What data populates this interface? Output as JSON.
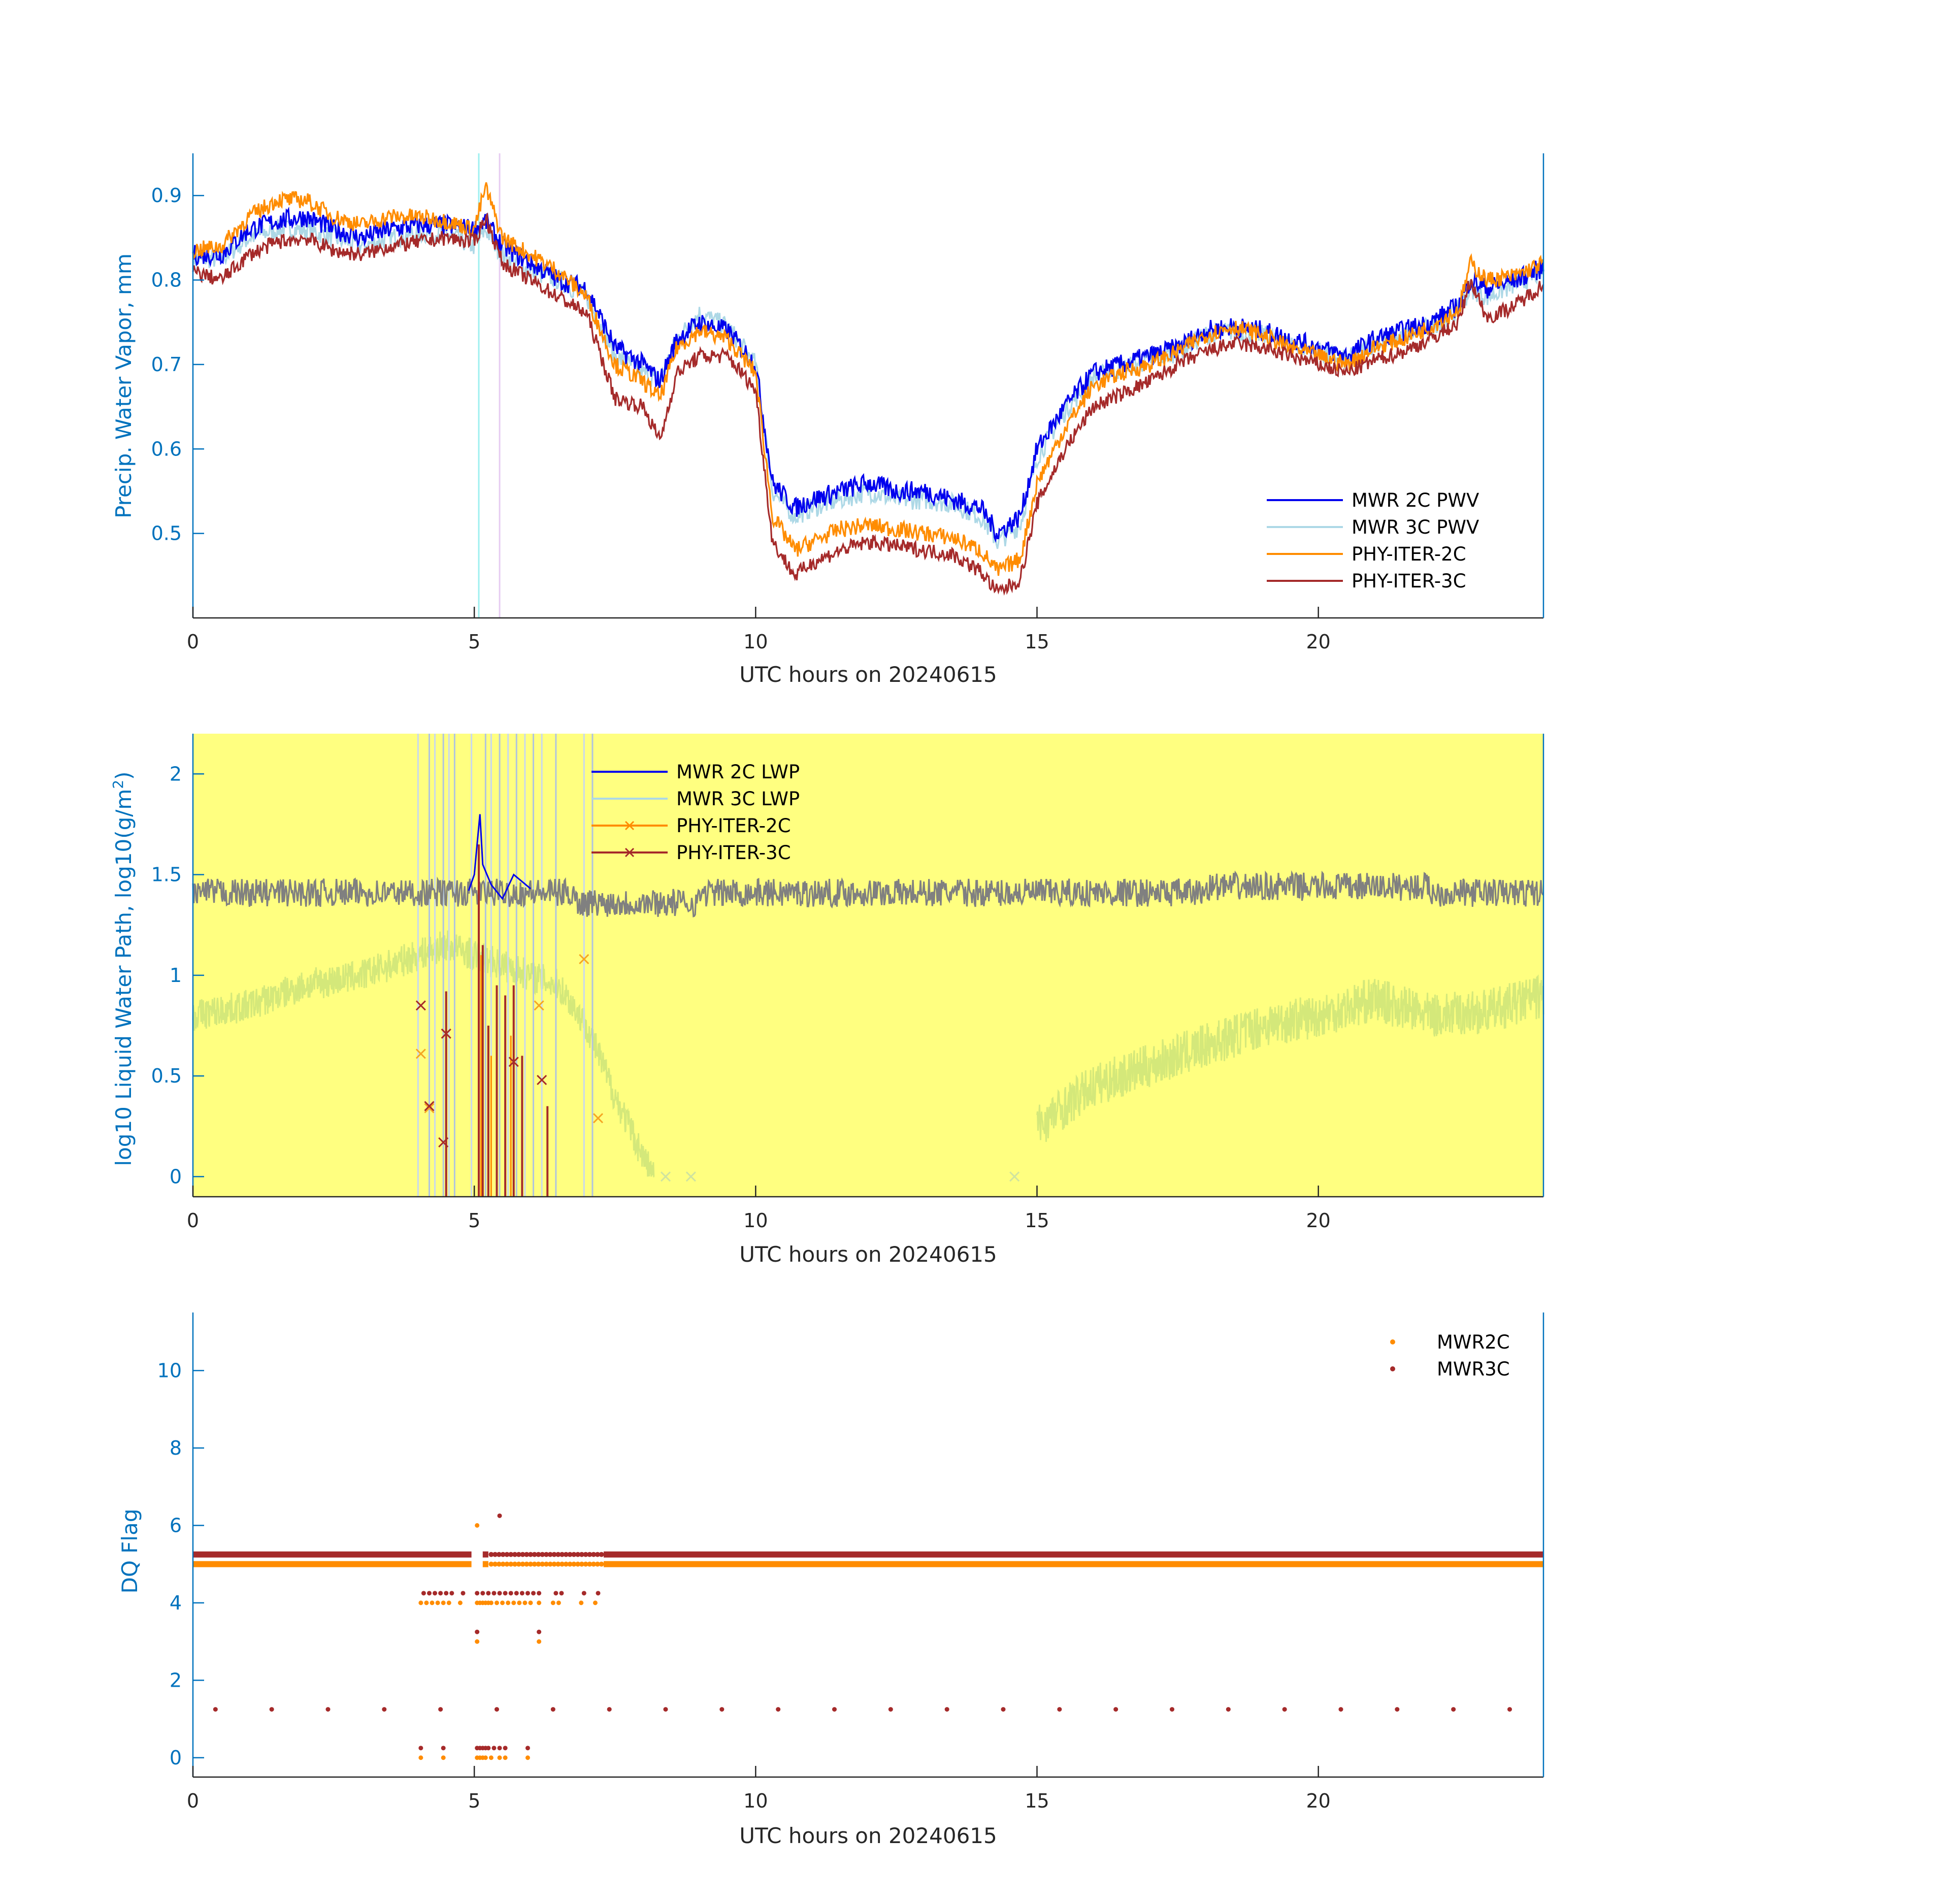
{
  "colors": {
    "mwr2c": "#0000EE",
    "mwr3c": "#ADD8E6",
    "phy2c": "#FF8C00",
    "phy3c": "#A52A2A",
    "axis_left": "#0072BD",
    "tick_text": "#262626",
    "lwp_background": "#FFFF80",
    "lwp_noise": "#808080",
    "lwp_green": "#D4E87A"
  },
  "chart_data": [
    {
      "type": "line",
      "xlabel": "UTC hours on 20240615",
      "ylabel": "Precip. Water Vapor, mm",
      "xlim": [
        0,
        24
      ],
      "ylim": [
        0.4,
        0.95
      ],
      "xticks": [
        0,
        5,
        10,
        15,
        20
      ],
      "xtick_labels": [
        "0",
        "5",
        "10",
        "15",
        "20"
      ],
      "yticks": [
        0.5,
        0.6,
        0.7,
        0.8,
        0.9
      ],
      "ytick_labels": [
        "0.5",
        "0.6",
        "0.7",
        "0.8",
        "0.9"
      ],
      "legend_position": "bottom-right",
      "x": [
        0,
        0.5,
        1,
        1.5,
        2,
        2.5,
        3,
        3.5,
        4,
        4.5,
        5,
        5.2,
        5.5,
        6,
        6.5,
        7,
        7.5,
        8,
        8.3,
        8.6,
        9,
        9.5,
        10,
        10.3,
        10.7,
        11,
        11.5,
        12,
        12.5,
        13,
        13.5,
        14,
        14.3,
        14.7,
        15,
        15.5,
        16,
        16.5,
        17,
        17.5,
        18,
        18.5,
        19,
        19.5,
        20,
        20.5,
        21,
        21.5,
        22,
        22.5,
        22.7,
        23,
        23.5,
        24
      ],
      "series": [
        {
          "name": "MWR 2C PWV",
          "values": [
            0.83,
            0.83,
            0.86,
            0.87,
            0.875,
            0.86,
            0.85,
            0.86,
            0.865,
            0.865,
            0.86,
            0.87,
            0.84,
            0.82,
            0.8,
            0.79,
            0.72,
            0.7,
            0.68,
            0.73,
            0.75,
            0.74,
            0.7,
            0.56,
            0.53,
            0.54,
            0.55,
            0.56,
            0.55,
            0.55,
            0.54,
            0.53,
            0.5,
            0.52,
            0.6,
            0.65,
            0.69,
            0.7,
            0.71,
            0.72,
            0.74,
            0.745,
            0.74,
            0.73,
            0.72,
            0.71,
            0.73,
            0.74,
            0.75,
            0.77,
            0.8,
            0.79,
            0.8,
            0.815
          ]
        },
        {
          "name": "MWR 3C PWV",
          "values": [
            0.825,
            0.825,
            0.85,
            0.86,
            0.86,
            0.85,
            0.84,
            0.85,
            0.855,
            0.855,
            0.84,
            0.86,
            0.83,
            0.81,
            0.8,
            0.78,
            0.71,
            0.69,
            0.68,
            0.73,
            0.76,
            0.745,
            0.7,
            0.55,
            0.52,
            0.53,
            0.54,
            0.55,
            0.54,
            0.54,
            0.535,
            0.52,
            0.49,
            0.51,
            0.59,
            0.645,
            0.685,
            0.695,
            0.705,
            0.715,
            0.735,
            0.74,
            0.735,
            0.725,
            0.715,
            0.705,
            0.725,
            0.735,
            0.745,
            0.765,
            0.79,
            0.78,
            0.795,
            0.81
          ]
        },
        {
          "name": "PHY-ITER-2C",
          "values": [
            0.835,
            0.84,
            0.875,
            0.895,
            0.895,
            0.875,
            0.865,
            0.875,
            0.875,
            0.87,
            0.86,
            0.91,
            0.85,
            0.83,
            0.81,
            0.78,
            0.7,
            0.68,
            0.66,
            0.72,
            0.74,
            0.73,
            0.69,
            0.52,
            0.48,
            0.49,
            0.505,
            0.51,
            0.505,
            0.5,
            0.495,
            0.48,
            0.455,
            0.47,
            0.56,
            0.625,
            0.675,
            0.69,
            0.7,
            0.715,
            0.735,
            0.745,
            0.735,
            0.72,
            0.71,
            0.7,
            0.72,
            0.73,
            0.745,
            0.765,
            0.82,
            0.8,
            0.805,
            0.82
          ]
        },
        {
          "name": "PHY-ITER-3C",
          "values": [
            0.81,
            0.8,
            0.83,
            0.845,
            0.85,
            0.835,
            0.83,
            0.84,
            0.845,
            0.85,
            0.845,
            0.875,
            0.82,
            0.8,
            0.78,
            0.76,
            0.66,
            0.65,
            0.61,
            0.69,
            0.71,
            0.71,
            0.67,
            0.49,
            0.45,
            0.465,
            0.48,
            0.49,
            0.485,
            0.48,
            0.475,
            0.455,
            0.43,
            0.445,
            0.535,
            0.6,
            0.65,
            0.665,
            0.68,
            0.7,
            0.715,
            0.725,
            0.72,
            0.71,
            0.7,
            0.69,
            0.705,
            0.715,
            0.73,
            0.75,
            0.8,
            0.755,
            0.77,
            0.795
          ]
        }
      ]
    },
    {
      "type": "line",
      "xlabel": "UTC hours on 20240615",
      "ylabel": "log10 Liquid Water Path, log10(g/m",
      "ylabel_sup": "2",
      "ylabel_tail": ")",
      "xlim": [
        0,
        24
      ],
      "ylim": [
        -0.1,
        2.2
      ],
      "xticks": [
        0,
        5,
        10,
        15,
        20
      ],
      "xtick_labels": [
        "0",
        "5",
        "10",
        "15",
        "20"
      ],
      "yticks": [
        0,
        0.5,
        1,
        1.5,
        2
      ],
      "ytick_labels": [
        "0",
        "0.5",
        "1",
        "1.5",
        "2"
      ],
      "legend_position": "top-center",
      "series": [
        {
          "name": "MWR 2C LWP",
          "x": [
            4.9,
            5.0,
            5.05,
            5.1,
            5.15,
            5.3,
            5.5,
            5.7,
            6.0
          ],
          "values": [
            1.42,
            1.5,
            1.65,
            1.8,
            1.55,
            1.45,
            1.38,
            1.5,
            1.43
          ]
        },
        {
          "name": "MWR 3C LWP",
          "x": [
            0,
            1,
            2,
            3,
            4,
            4.5,
            5,
            5.5,
            6,
            6.5,
            7,
            7.5,
            8,
            8.2
          ],
          "values": [
            0.8,
            0.85,
            0.95,
            1.0,
            1.1,
            1.15,
            1.1,
            1.05,
            1.0,
            0.95,
            0.75,
            0.4,
            0.1,
            0.0
          ]
        },
        {
          "name": "PHY-ITER-2C",
          "x": [
            4.05,
            4.2,
            4.5,
            6.15,
            6.95,
            7.2
          ],
          "values": [
            0.61,
            0.34,
            0.71,
            0.85,
            1.08,
            0.29
          ]
        },
        {
          "name": "PHY-ITER-3C",
          "x": [
            4.05,
            4.2,
            4.45,
            4.5,
            5.7,
            6.2
          ],
          "values": [
            0.85,
            0.35,
            0.17,
            0.71,
            0.57,
            0.48
          ]
        }
      ]
    },
    {
      "type": "scatter",
      "xlabel": "UTC hours on 20240615",
      "ylabel": "DQ Flag",
      "xlim": [
        0,
        24
      ],
      "ylim": [
        -0.5,
        11.5
      ],
      "xticks": [
        0,
        5,
        10,
        15,
        20
      ],
      "xtick_labels": [
        "0",
        "5",
        "10",
        "15",
        "20"
      ],
      "yticks": [
        0,
        2,
        4,
        6,
        8,
        10
      ],
      "ytick_labels": [
        "0",
        "2",
        "4",
        "6",
        "8",
        "10"
      ],
      "legend_position": "top-right",
      "series": [
        {
          "name": "MWR2C",
          "baseline": 5,
          "x": [
            4.05,
            4.15,
            4.25,
            4.35,
            4.45,
            4.55,
            4.75,
            5.05,
            5.1,
            5.15,
            5.2,
            5.25,
            5.3,
            5.4,
            5.5,
            5.6,
            5.7,
            5.8,
            5.9,
            6.0,
            6.15,
            6.4,
            6.5,
            6.9,
            7.15,
            4.05,
            4.45,
            5.05,
            5.1,
            5.15,
            5.2,
            5.3,
            5.45,
            5.55,
            5.95,
            5.05,
            6.15,
            5.05
          ],
          "values": [
            4,
            4,
            4,
            4,
            4,
            4,
            4,
            4,
            4,
            4,
            4,
            4,
            4,
            4,
            4,
            4,
            4,
            4,
            4,
            4,
            4,
            4,
            4,
            4,
            4,
            0,
            0,
            0,
            0,
            0,
            0,
            0,
            0,
            0,
            0,
            3,
            3,
            6
          ]
        },
        {
          "name": "MWR3C",
          "baseline": 5.25,
          "x": [
            4.1,
            4.2,
            4.3,
            4.4,
            4.5,
            4.6,
            4.8,
            5.05,
            5.15,
            5.25,
            5.35,
            5.45,
            5.55,
            5.65,
            5.75,
            5.85,
            5.95,
            6.05,
            6.15,
            6.45,
            6.55,
            6.95,
            7.2,
            4.05,
            4.45,
            5.05,
            5.1,
            5.15,
            5.2,
            5.25,
            5.35,
            5.45,
            5.55,
            5.95,
            5.05,
            6.15,
            5.45,
            0.4,
            1.4,
            2.4,
            3.4,
            4.4,
            5.4,
            6.4,
            7.4,
            8.4,
            9.4,
            10.4,
            11.4,
            12.4,
            13.4,
            14.4,
            15.4,
            16.4,
            17.4,
            18.4,
            19.4,
            20.4,
            21.4,
            22.4,
            23.4
          ],
          "values": [
            4.25,
            4.25,
            4.25,
            4.25,
            4.25,
            4.25,
            4.25,
            4.25,
            4.25,
            4.25,
            4.25,
            4.25,
            4.25,
            4.25,
            4.25,
            4.25,
            4.25,
            4.25,
            4.25,
            4.25,
            4.25,
            4.25,
            4.25,
            0.25,
            0.25,
            0.25,
            0.25,
            0.25,
            0.25,
            0.25,
            0.25,
            0.25,
            0.25,
            0.25,
            3.25,
            3.25,
            6.25,
            1.25,
            1.25,
            1.25,
            1.25,
            1.25,
            1.25,
            1.25,
            1.25,
            1.25,
            1.25,
            1.25,
            1.25,
            1.25,
            1.25,
            1.25,
            1.25,
            1.25,
            1.25,
            1.25,
            1.25,
            1.25,
            1.25,
            1.25,
            1.25
          ]
        }
      ]
    }
  ]
}
